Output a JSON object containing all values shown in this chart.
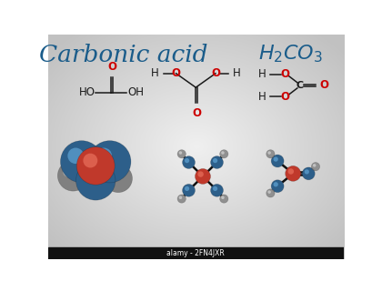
{
  "title": "Carbonic acid",
  "formula": "$H_2CO_3$",
  "title_color": "#1a5c8a",
  "formula_color": "#1a5c8a",
  "bond_color": "#1a1a1a",
  "O_color": "#cc0000",
  "C_color": "#1a1a1a",
  "H_color": "#1a1a1a",
  "blue_atom": "#2d5f8a",
  "red_atom": "#c0392b",
  "gray_atom": "#909090",
  "watermark": "alamy - 2FN4JXR",
  "bg_colors": [
    "#aaaaaa",
    "#d8d8d8",
    "#eeeeee",
    "#d8d8d8",
    "#aaaaaa"
  ]
}
